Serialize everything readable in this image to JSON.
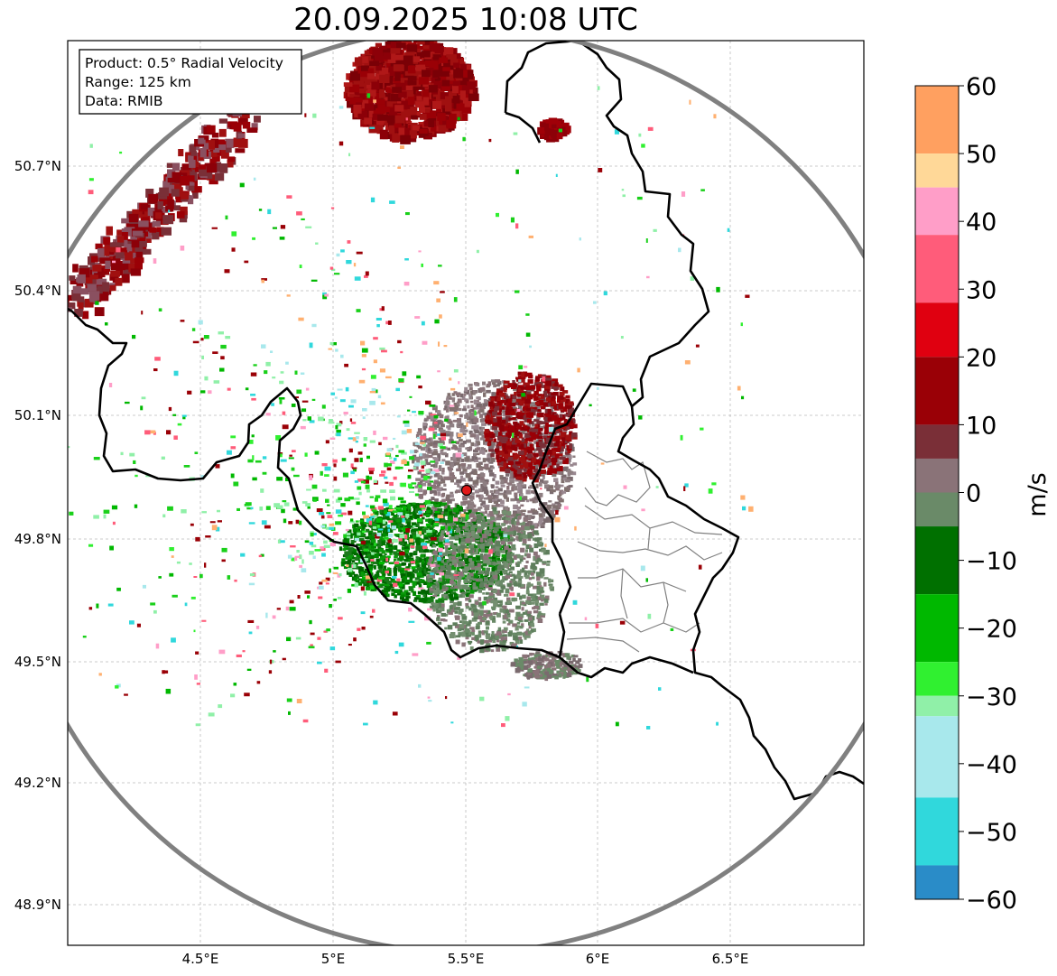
{
  "map": {
    "title": "20.09.2025 10:08 UTC",
    "info_box": {
      "product": "Product: 0.5° Radial Velocity",
      "range": "Range: 125 km",
      "data": "Data: RMIB"
    },
    "lat_labels": [
      "50.7°N",
      "50.4°N",
      "50.1°N",
      "49.8°N",
      "49.5°N",
      "49.2°N",
      "48.9°N"
    ],
    "lon_labels": [
      "4.5°E",
      "5°E",
      "5.5°E",
      "6°E",
      "6.5°E"
    ],
    "radar_site_marker": "radar-site",
    "range_ring_color": "#808080",
    "border_color": "#000000"
  },
  "colorbar": {
    "unit": "m/s",
    "tick_labels": [
      "60",
      "50",
      "40",
      "30",
      "20",
      "10",
      "0",
      "−10",
      "−20",
      "−30",
      "−40",
      "−50",
      "−60"
    ],
    "min": -60,
    "max": 60,
    "colors": [
      {
        "from": 50,
        "to": 60,
        "color": "#ffa060"
      },
      {
        "from": 45,
        "to": 50,
        "color": "#ffd898"
      },
      {
        "from": 38,
        "to": 45,
        "color": "#ff9ec8"
      },
      {
        "from": 28,
        "to": 38,
        "color": "#ff5c7a"
      },
      {
        "from": 20,
        "to": 28,
        "color": "#e00010"
      },
      {
        "from": 10,
        "to": 20,
        "color": "#9a0006"
      },
      {
        "from": 5,
        "to": 10,
        "color": "#7a2f37"
      },
      {
        "from": 0,
        "to": 5,
        "color": "#8a7378"
      },
      {
        "from": -5,
        "to": 0,
        "color": "#6a8a68"
      },
      {
        "from": -15,
        "to": -5,
        "color": "#007000"
      },
      {
        "from": -25,
        "to": -15,
        "color": "#00b800"
      },
      {
        "from": -30,
        "to": -25,
        "color": "#30f030"
      },
      {
        "from": -33,
        "to": -30,
        "color": "#90f0a8"
      },
      {
        "from": -45,
        "to": -33,
        "color": "#a8e8ec"
      },
      {
        "from": -55,
        "to": -45,
        "color": "#30d8dc"
      },
      {
        "from": -60,
        "to": -55,
        "color": "#2a8cc8"
      }
    ]
  }
}
